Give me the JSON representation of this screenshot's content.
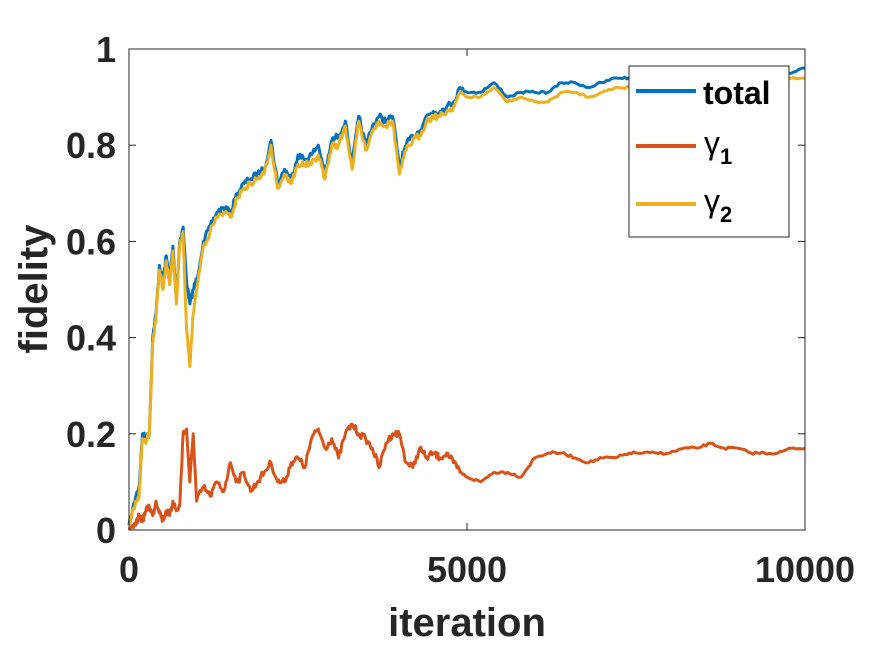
{
  "chart_data": {
    "type": "line",
    "title": "",
    "xlabel": "iteration",
    "ylabel": "fidelity",
    "xlim": [
      0,
      10000
    ],
    "ylim": [
      0,
      1
    ],
    "xticks": [
      0,
      5000,
      10000
    ],
    "yticks": [
      0,
      0.2,
      0.4,
      0.6,
      0.8,
      1
    ],
    "xtick_labels": [
      "0",
      "5000",
      "10000"
    ],
    "ytick_labels": [
      "0",
      "0.2",
      "0.4",
      "0.6",
      "0.8",
      "1"
    ],
    "grid": false,
    "legend_position": "top-right",
    "series": [
      {
        "name": "total",
        "color": "#0072BD",
        "x": [
          0,
          100,
          150,
          200,
          250,
          300,
          350,
          400,
          450,
          500,
          550,
          600,
          650,
          700,
          750,
          800,
          850,
          900,
          950,
          1000,
          1100,
          1200,
          1300,
          1400,
          1500,
          1600,
          1700,
          1800,
          1900,
          2000,
          2100,
          2200,
          2300,
          2400,
          2500,
          2600,
          2700,
          2800,
          2900,
          3000,
          3100,
          3200,
          3300,
          3400,
          3500,
          3600,
          3700,
          3800,
          3900,
          4000,
          4100,
          4200,
          4300,
          4400,
          4500,
          4600,
          4700,
          4800,
          4900,
          5000,
          5200,
          5400,
          5600,
          5800,
          6000,
          6200,
          6400,
          6600,
          6800,
          7000,
          7200,
          7400,
          7600,
          7800,
          8000,
          8200,
          8400,
          8600,
          8800,
          9000,
          9200,
          9400,
          9600,
          9800,
          10000
        ],
        "values": [
          0.01,
          0.07,
          0.09,
          0.2,
          0.19,
          0.2,
          0.4,
          0.45,
          0.55,
          0.51,
          0.57,
          0.52,
          0.59,
          0.48,
          0.6,
          0.63,
          0.52,
          0.47,
          0.5,
          0.52,
          0.6,
          0.63,
          0.66,
          0.67,
          0.66,
          0.7,
          0.72,
          0.73,
          0.74,
          0.75,
          0.81,
          0.72,
          0.75,
          0.73,
          0.78,
          0.77,
          0.78,
          0.8,
          0.74,
          0.81,
          0.82,
          0.85,
          0.76,
          0.86,
          0.8,
          0.84,
          0.86,
          0.85,
          0.86,
          0.76,
          0.8,
          0.82,
          0.83,
          0.86,
          0.87,
          0.87,
          0.88,
          0.89,
          0.92,
          0.91,
          0.91,
          0.93,
          0.9,
          0.91,
          0.91,
          0.91,
          0.93,
          0.93,
          0.92,
          0.93,
          0.94,
          0.94,
          0.93,
          0.94,
          0.94,
          0.95,
          0.96,
          0.95,
          0.95,
          0.95,
          0.95,
          0.95,
          0.95,
          0.95,
          0.96
        ]
      },
      {
        "name": "γ1",
        "color": "#D95319",
        "x": [
          0,
          100,
          150,
          200,
          250,
          300,
          350,
          400,
          450,
          500,
          550,
          600,
          650,
          700,
          750,
          800,
          850,
          900,
          950,
          1000,
          1100,
          1200,
          1300,
          1400,
          1500,
          1600,
          1700,
          1800,
          1900,
          2000,
          2100,
          2200,
          2300,
          2400,
          2500,
          2600,
          2700,
          2800,
          2900,
          3000,
          3100,
          3200,
          3300,
          3400,
          3500,
          3600,
          3700,
          3800,
          3900,
          4000,
          4100,
          4200,
          4300,
          4400,
          4500,
          4600,
          4700,
          4800,
          4900,
          5000,
          5200,
          5400,
          5600,
          5800,
          6000,
          6200,
          6400,
          6600,
          6800,
          7000,
          7200,
          7400,
          7600,
          7800,
          8000,
          8200,
          8400,
          8600,
          8800,
          9000,
          9200,
          9400,
          9600,
          9800,
          10000
        ],
        "values": [
          0.0,
          0.01,
          0.03,
          0.02,
          0.04,
          0.05,
          0.03,
          0.06,
          0.04,
          0.02,
          0.04,
          0.03,
          0.06,
          0.04,
          0.05,
          0.2,
          0.21,
          0.1,
          0.2,
          0.06,
          0.09,
          0.07,
          0.1,
          0.08,
          0.14,
          0.1,
          0.12,
          0.08,
          0.1,
          0.12,
          0.14,
          0.1,
          0.1,
          0.14,
          0.15,
          0.13,
          0.19,
          0.21,
          0.17,
          0.19,
          0.15,
          0.2,
          0.22,
          0.2,
          0.19,
          0.17,
          0.13,
          0.18,
          0.2,
          0.2,
          0.14,
          0.13,
          0.17,
          0.15,
          0.16,
          0.15,
          0.16,
          0.14,
          0.12,
          0.11,
          0.1,
          0.12,
          0.12,
          0.11,
          0.15,
          0.16,
          0.16,
          0.15,
          0.14,
          0.15,
          0.15,
          0.16,
          0.16,
          0.16,
          0.16,
          0.17,
          0.17,
          0.18,
          0.17,
          0.17,
          0.16,
          0.16,
          0.16,
          0.17,
          0.17
        ]
      },
      {
        "name": "γ2",
        "color": "#EDB120",
        "x": [
          0,
          100,
          150,
          200,
          250,
          300,
          350,
          400,
          450,
          500,
          550,
          600,
          650,
          700,
          750,
          800,
          850,
          900,
          950,
          1000,
          1100,
          1200,
          1300,
          1400,
          1500,
          1600,
          1700,
          1800,
          1900,
          2000,
          2100,
          2200,
          2300,
          2400,
          2500,
          2600,
          2700,
          2800,
          2900,
          3000,
          3100,
          3200,
          3300,
          3400,
          3500,
          3600,
          3700,
          3800,
          3900,
          4000,
          4100,
          4200,
          4300,
          4400,
          4500,
          4600,
          4700,
          4800,
          4900,
          5000,
          5200,
          5400,
          5600,
          5800,
          6000,
          6200,
          6400,
          6600,
          6800,
          7000,
          7200,
          7400,
          7600,
          7800,
          8000,
          8200,
          8400,
          8600,
          8800,
          9000,
          9200,
          9400,
          9600,
          9800,
          10000
        ],
        "values": [
          0.01,
          0.06,
          0.07,
          0.19,
          0.18,
          0.2,
          0.39,
          0.44,
          0.54,
          0.5,
          0.56,
          0.51,
          0.58,
          0.47,
          0.59,
          0.62,
          0.42,
          0.34,
          0.45,
          0.5,
          0.59,
          0.62,
          0.65,
          0.66,
          0.65,
          0.69,
          0.71,
          0.72,
          0.73,
          0.74,
          0.8,
          0.71,
          0.74,
          0.72,
          0.76,
          0.76,
          0.76,
          0.78,
          0.73,
          0.8,
          0.8,
          0.84,
          0.75,
          0.85,
          0.79,
          0.83,
          0.85,
          0.84,
          0.85,
          0.74,
          0.79,
          0.81,
          0.82,
          0.85,
          0.86,
          0.86,
          0.87,
          0.88,
          0.91,
          0.9,
          0.9,
          0.92,
          0.89,
          0.9,
          0.89,
          0.89,
          0.91,
          0.91,
          0.9,
          0.91,
          0.92,
          0.92,
          0.92,
          0.92,
          0.93,
          0.93,
          0.94,
          0.93,
          0.93,
          0.93,
          0.93,
          0.94,
          0.94,
          0.94,
          0.94
        ]
      }
    ]
  }
}
